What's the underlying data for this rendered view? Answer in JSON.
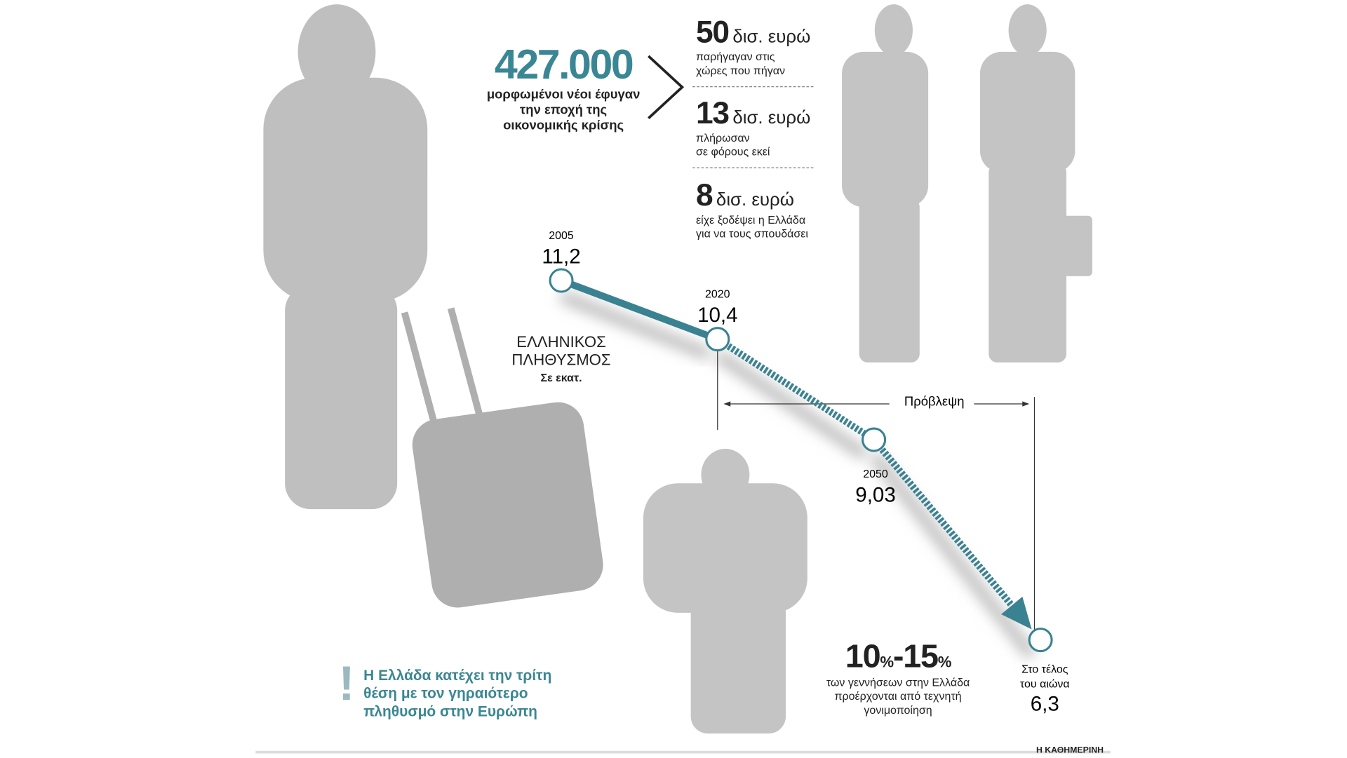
{
  "headline": {
    "value": "427.000",
    "text": "μορφωμένοι νέοι έφυγαν την εποχή της οικονομικής κρίσης"
  },
  "stats": [
    {
      "number": "50",
      "unit": "δισ. ευρώ",
      "desc_lines": [
        "παρήγαγαν στις",
        "χώρες που πήγαν"
      ]
    },
    {
      "number": "13",
      "unit": "δισ. ευρώ",
      "desc_lines": [
        "πλήρωσαν",
        "σε φόρους εκεί"
      ]
    },
    {
      "number": "8",
      "unit": "δισ. ευρώ",
      "desc_lines": [
        "είχε ξοδέψει η Ελλάδα",
        "για να τους σπουδάσει"
      ]
    }
  ],
  "chart_data": {
    "type": "line",
    "title": "ΕΛΛΗΝΙΚΟΣ ΠΛΗΘΥΣΜΟΣ",
    "title_lines": [
      "ΕΛΛΗΝΙΚΟΣ",
      "ΠΛΗΘΥΣΜΟΣ"
    ],
    "subtitle": "Σε εκατ.",
    "forecast_label": "Πρόβλεψη",
    "points": [
      {
        "x": "2005",
        "y": 11.2,
        "label": "11,2",
        "forecast": false
      },
      {
        "x": "2020",
        "y": 10.4,
        "label": "10,4",
        "forecast": false
      },
      {
        "x": "2050",
        "y": 9.03,
        "label": "9,03",
        "forecast": true
      },
      {
        "x": "Στο τέλος του αιώνα",
        "x_lines": [
          "Στο τέλος",
          "του αιώνα"
        ],
        "y": 6.3,
        "label": "6,3",
        "forecast": true
      }
    ],
    "colors": {
      "line": "#3a8291",
      "marker_fill": "#ffffff"
    }
  },
  "fertility": {
    "from": "10",
    "to": "15",
    "pct": "%",
    "lines": [
      "των γεννήσεων στην Ελλάδα",
      "προέρχονται από τεχνητή",
      "γονιμοποίηση"
    ]
  },
  "note": {
    "mark": "!",
    "lines": [
      "Η Ελλάδα κατέχει την τρίτη",
      "θέση με τον γηραιότερο",
      "πληθυσμό στην Ευρώπη"
    ]
  },
  "credit": "Η ΚΑΘΗΜΕΡΙΝΗ"
}
